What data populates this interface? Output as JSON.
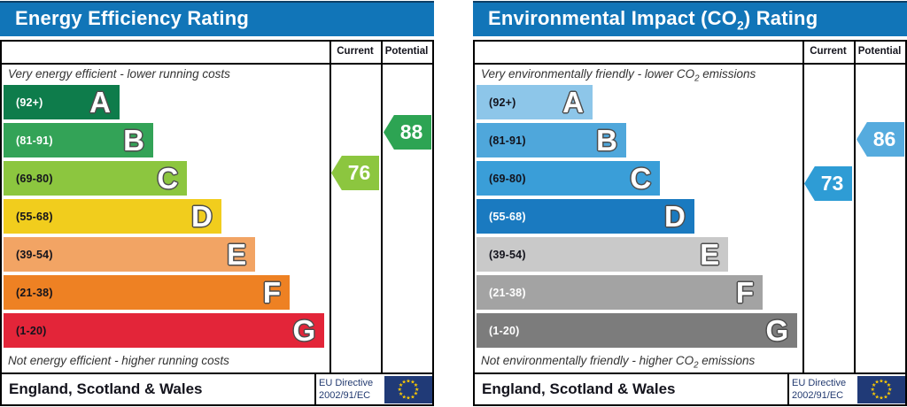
{
  "theme": {
    "header_blue": "#1175b8",
    "header_blue_edge": "#0d3f66",
    "flag_navy": "#203a77",
    "star_gold": "#ffcc00",
    "directive_navy": "#223a70"
  },
  "chart_data": [
    {
      "type": "bar",
      "title": "Energy Efficiency Rating",
      "categories": [
        "A (92+)",
        "B (81-91)",
        "C (69-80)",
        "D (55-68)",
        "E (39-54)",
        "F (21-38)",
        "G (1-20)"
      ],
      "series": [
        {
          "name": "band bar length (% of scale width)",
          "values": [
            35.6,
            45.9,
            56.3,
            66.8,
            77.2,
            87.8,
            98.4
          ]
        }
      ],
      "ratings": {
        "current": 76,
        "current_band": "C",
        "potential": 88,
        "potential_band": "B"
      },
      "top_annotation": "Very energy efficient - lower running costs",
      "bottom_annotation": "Not energy efficient - higher running costs",
      "columns": [
        "Current",
        "Potential"
      ],
      "footer_left": "England, Scotland & Wales",
      "footer_right": "EU Directive 2002/91/EC"
    },
    {
      "type": "bar",
      "title": "Environmental Impact (CO2) Rating",
      "categories": [
        "A (92+)",
        "B (81-91)",
        "C (69-80)",
        "D (55-68)",
        "E (39-54)",
        "F (21-38)",
        "G (1-20)"
      ],
      "series": [
        {
          "name": "band bar length (% of scale width)",
          "values": [
            35.6,
            45.9,
            56.3,
            66.8,
            77.2,
            87.8,
            98.4
          ]
        }
      ],
      "ratings": {
        "current": 73,
        "current_band": "C",
        "potential": 86,
        "potential_band": "B"
      },
      "top_annotation": "Very environmentally friendly - lower CO2 emissions",
      "bottom_annotation": "Not environmentally friendly - higher CO2 emissions",
      "columns": [
        "Current",
        "Potential"
      ],
      "footer_left": "England, Scotland & Wales",
      "footer_right": "EU Directive 2002/91/EC"
    }
  ],
  "panels": [
    {
      "title": {
        "pre": "Energy Efficiency Rating",
        "sub": "",
        "post": ""
      },
      "columns": {
        "current": "Current",
        "potential": "Potential"
      },
      "top_caption": {
        "pre": "Very energy efficient - lower running costs",
        "sub": "",
        "post": ""
      },
      "bottom_caption": {
        "pre": "Not energy efficient - higher running costs",
        "sub": "",
        "post": ""
      },
      "bands": [
        {
          "letter": "A",
          "range": "(92+)",
          "color": "#0e7c4b",
          "label_color": "#ffffff",
          "width_pct": 35.6
        },
        {
          "letter": "B",
          "range": "(81-91)",
          "color": "#33a357",
          "label_color": "#ffffff",
          "width_pct": 45.9
        },
        {
          "letter": "C",
          "range": "(69-80)",
          "color": "#8cc63f",
          "label_color": "#13131c",
          "width_pct": 56.3
        },
        {
          "letter": "D",
          "range": "(55-68)",
          "color": "#f1cd1d",
          "label_color": "#13131c",
          "width_pct": 66.8
        },
        {
          "letter": "E",
          "range": "(39-54)",
          "color": "#f2a464",
          "label_color": "#13131c",
          "width_pct": 77.2
        },
        {
          "letter": "F",
          "range": "(21-38)",
          "color": "#ee8123",
          "label_color": "#13131c",
          "width_pct": 87.8
        },
        {
          "letter": "G",
          "range": "(1-20)",
          "color": "#e32539",
          "label_color": "#13131c",
          "width_pct": 98.4
        }
      ],
      "arrows": {
        "current": {
          "value": "76",
          "band": "C",
          "color": "#8cc63f"
        },
        "potential": {
          "value": "88",
          "band": "B",
          "color": "#2da453"
        }
      },
      "footer": {
        "region": "England, Scotland & Wales",
        "directive_line1": "EU Directive",
        "directive_line2": "2002/91/EC",
        "flag_icon": "eu-flag"
      }
    },
    {
      "title": {
        "pre": "Environmental Impact (CO",
        "sub": "2",
        "post": ") Rating"
      },
      "columns": {
        "current": "Current",
        "potential": "Potential"
      },
      "top_caption": {
        "pre": "Very environmentally friendly - lower CO",
        "sub": "2",
        "post": " emissions"
      },
      "bottom_caption": {
        "pre": "Not environmentally friendly - higher CO",
        "sub": "2",
        "post": " emissions"
      },
      "bands": [
        {
          "letter": "A",
          "range": "(92+)",
          "color": "#8dc6e9",
          "label_color": "#13131c",
          "width_pct": 35.6
        },
        {
          "letter": "B",
          "range": "(81-91)",
          "color": "#4fa7db",
          "label_color": "#13131c",
          "width_pct": 45.9
        },
        {
          "letter": "C",
          "range": "(69-80)",
          "color": "#3a9ed8",
          "label_color": "#13131c",
          "width_pct": 56.3
        },
        {
          "letter": "D",
          "range": "(55-68)",
          "color": "#1a7ac0",
          "label_color": "#ffffff",
          "width_pct": 66.8
        },
        {
          "letter": "E",
          "range": "(39-54)",
          "color": "#c9c9c9",
          "label_color": "#13131c",
          "width_pct": 77.2
        },
        {
          "letter": "F",
          "range": "(21-38)",
          "color": "#a3a3a3",
          "label_color": "#ffffff",
          "width_pct": 87.8
        },
        {
          "letter": "G",
          "range": "(1-20)",
          "color": "#7c7c7c",
          "label_color": "#ffffff",
          "width_pct": 98.4
        }
      ],
      "arrows": {
        "current": {
          "value": "73",
          "band": "C",
          "color": "#2e9cd5"
        },
        "potential": {
          "value": "86",
          "band": "B",
          "color": "#55abde"
        }
      },
      "footer": {
        "region": "England, Scotland & Wales",
        "directive_line1": "EU Directive",
        "directive_line2": "2002/91/EC",
        "flag_icon": "eu-flag"
      }
    }
  ]
}
